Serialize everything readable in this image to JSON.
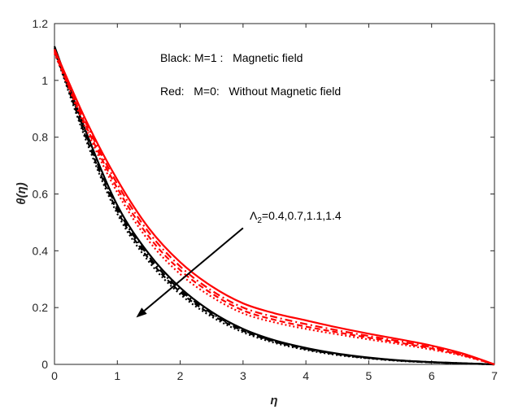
{
  "chart_data": {
    "type": "line",
    "xlabel": "η",
    "ylabel": "θ(η)",
    "xlim": [
      0,
      7
    ],
    "ylim": [
      0,
      1.2
    ],
    "xticks": [
      "0",
      "1",
      "2",
      "3",
      "4",
      "5",
      "6",
      "7"
    ],
    "yticks": [
      "0",
      "0.2",
      "0.4",
      "0.6",
      "0.8",
      "1",
      "1.2"
    ],
    "x": [
      0,
      0.5,
      1,
      1.5,
      2,
      2.5,
      3,
      3.5,
      4,
      4.5,
      5,
      5.5,
      6,
      6.5,
      7
    ],
    "series": [
      {
        "name": "M=1, Λ2=0.4",
        "group": "black",
        "color": "#000000",
        "dash": "solid",
        "values": [
          1.12,
          0.82,
          0.56,
          0.39,
          0.27,
          0.185,
          0.125,
          0.085,
          0.058,
          0.038,
          0.024,
          0.014,
          0.008,
          0.004,
          0.0
        ]
      },
      {
        "name": "M=1, Λ2=0.7",
        "group": "black",
        "color": "#000000",
        "dash": "dashdot",
        "values": [
          1.115,
          0.81,
          0.55,
          0.38,
          0.262,
          0.18,
          0.121,
          0.082,
          0.056,
          0.037,
          0.023,
          0.014,
          0.008,
          0.004,
          0.0
        ]
      },
      {
        "name": "M=1, Λ2=1.1",
        "group": "black",
        "color": "#000000",
        "dash": "dashed",
        "values": [
          1.11,
          0.8,
          0.54,
          0.372,
          0.255,
          0.175,
          0.118,
          0.08,
          0.054,
          0.035,
          0.022,
          0.013,
          0.007,
          0.003,
          0.0
        ]
      },
      {
        "name": "M=1, Λ2=1.4",
        "group": "black",
        "color": "#000000",
        "dash": "dotted",
        "values": [
          1.105,
          0.79,
          0.53,
          0.362,
          0.247,
          0.168,
          0.113,
          0.076,
          0.051,
          0.033,
          0.021,
          0.012,
          0.007,
          0.003,
          0.0
        ]
      },
      {
        "name": "M=0, Λ2=0.4",
        "group": "red",
        "color": "#ff0000",
        "dash": "solid",
        "values": [
          1.11,
          0.86,
          0.65,
          0.48,
          0.36,
          0.275,
          0.215,
          0.18,
          0.155,
          0.13,
          0.108,
          0.088,
          0.066,
          0.038,
          0.0
        ]
      },
      {
        "name": "M=0, Λ2=0.7",
        "group": "red",
        "color": "#ff0000",
        "dash": "dashdot",
        "values": [
          1.105,
          0.85,
          0.635,
          0.465,
          0.345,
          0.26,
          0.2,
          0.167,
          0.142,
          0.12,
          0.1,
          0.081,
          0.06,
          0.035,
          0.0
        ]
      },
      {
        "name": "M=0, Λ2=1.1",
        "group": "red",
        "color": "#ff0000",
        "dash": "dashed",
        "values": [
          1.1,
          0.84,
          0.62,
          0.45,
          0.332,
          0.25,
          0.19,
          0.157,
          0.133,
          0.113,
          0.094,
          0.076,
          0.056,
          0.032,
          0.0
        ]
      },
      {
        "name": "M=0, Λ2=1.4",
        "group": "red",
        "color": "#ff0000",
        "dash": "dotted",
        "values": [
          1.095,
          0.83,
          0.605,
          0.435,
          0.318,
          0.238,
          0.18,
          0.148,
          0.125,
          0.106,
          0.088,
          0.071,
          0.052,
          0.03,
          0.0
        ]
      }
    ],
    "annotations": {
      "black_legend": "Black: M=1 :   Magnetic field",
      "red_legend": "Red:   M=0:   Without Magnetic field",
      "arrow_label_symbol": "Λ",
      "arrow_label_sub": "2",
      "arrow_label_values": "=0.4,0.7,1.1,1.4",
      "arrow_from": [
        3.0,
        0.48
      ],
      "arrow_to": [
        1.3,
        0.165
      ]
    }
  }
}
